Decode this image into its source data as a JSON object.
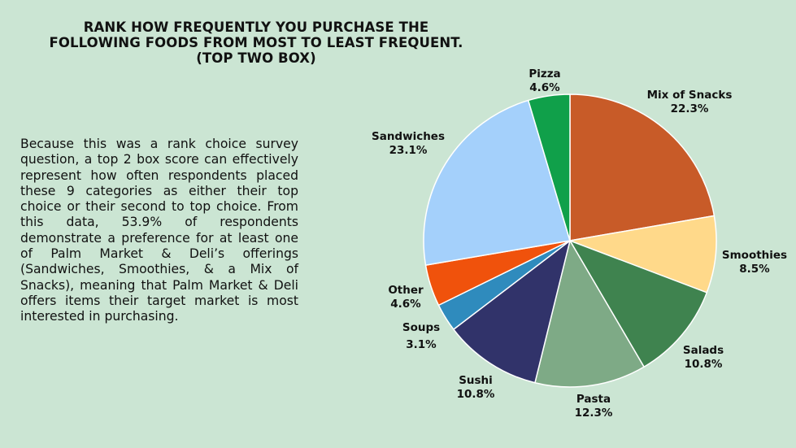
{
  "title_lines": [
    "RANK HOW FREQUENTLY YOU PURCHASE THE",
    "FOLLOWING FOODS FROM MOST TO LEAST FREQUENT.",
    "(TOP TWO BOX)"
  ],
  "body_text": "Because this was a rank choice survey question, a top 2 box score can effectively represent how often respondents placed these 9 categories as either their top choice or their second to top choice. From this data, 53.9% of respondents demonstrate a preference for at least one of Palm Market & Deli’s offerings (Sandwiches, Smoothies, & a Mix of Snacks), meaning that Palm Market & Deli offers items their target market is most interested in purchasing.",
  "chart_data": {
    "type": "pie",
    "start": "12 o'clock",
    "direction": "clockwise",
    "slices": [
      {
        "label": "Mix of Snacks",
        "value": 22.3,
        "value_label": "22.3%",
        "color": "#c85b28"
      },
      {
        "label": "Smoothies",
        "value": 8.5,
        "value_label": "8.5%",
        "color": "#ffd98a"
      },
      {
        "label": "Salads",
        "value": 10.8,
        "value_label": "10.8%",
        "color": "#3f834f"
      },
      {
        "label": "Pasta",
        "value": 12.3,
        "value_label": "12.3%",
        "color": "#7eaa86"
      },
      {
        "label": "Sushi",
        "value": 10.8,
        "value_label": "10.8%",
        "color": "#31336a"
      },
      {
        "label": "Soups",
        "value": 3.1,
        "value_label": "3.1%",
        "color": "#2f8bbd"
      },
      {
        "label": "Other",
        "value": 4.6,
        "value_label": "4.6%",
        "color": "#f0520c"
      },
      {
        "label": "Sandwiches",
        "value": 23.1,
        "value_label": "23.1%",
        "color": "#a4d0fb"
      },
      {
        "label": "Pizza",
        "value": 4.6,
        "value_label": "4.6%",
        "color": "#10a04a"
      }
    ]
  }
}
